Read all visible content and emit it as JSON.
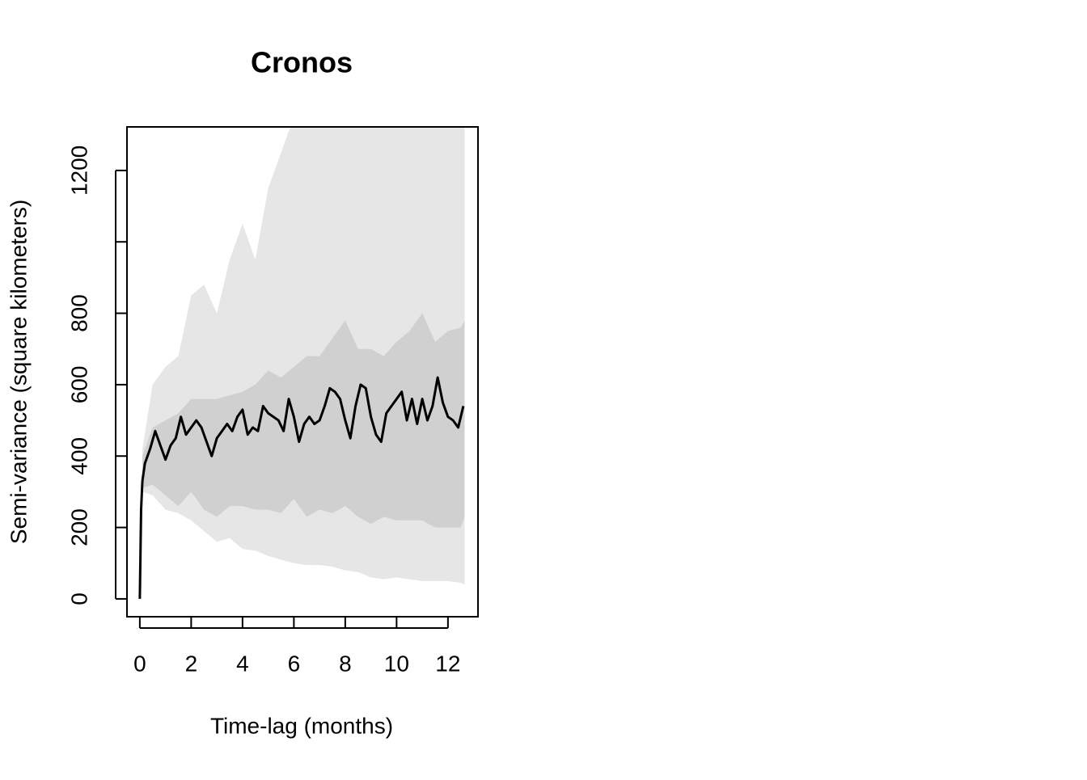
{
  "chart_data": {
    "type": "band-line",
    "title": "Cronos",
    "xlabel": "Time-lag (months)",
    "ylabel": "Semi-variance (square kilometers)",
    "xlim": [
      -0.5,
      13.17
    ],
    "ylim": [
      -50,
      1322
    ],
    "xticks": [
      0,
      2,
      4,
      6,
      8,
      10,
      12
    ],
    "yticks": [
      0,
      200,
      400,
      600,
      800,
      {
        "value": 1000,
        "label": null
      },
      1200
    ],
    "bands": [
      {
        "color": "#e6e6e6",
        "x": [
          0.1,
          0.5,
          1,
          1.5,
          2,
          2.5,
          3,
          3.5,
          4,
          4.5,
          5,
          5.5,
          6,
          6.5,
          7,
          7.5,
          8,
          8.5,
          9,
          9.5,
          10,
          10.5,
          11,
          11.5,
          12,
          12.5,
          12.65
        ],
        "lower": [
          300,
          290,
          250,
          240,
          220,
          190,
          160,
          170,
          140,
          135,
          120,
          110,
          100,
          95,
          95,
          90,
          80,
          75,
          60,
          55,
          60,
          55,
          50,
          50,
          50,
          45,
          40
        ],
        "upper": [
          420,
          600,
          650,
          680,
          850,
          880,
          800,
          950,
          1050,
          950,
          1150,
          1250,
          1350,
          1400,
          1400,
          1400,
          1400,
          1400,
          1400,
          1400,
          1400,
          1400,
          1400,
          1400,
          1400,
          1400,
          1400
        ]
      },
      {
        "color": "#d0d0d0",
        "x": [
          0.1,
          0.5,
          1,
          1.5,
          2,
          2.5,
          3,
          3.5,
          4,
          4.5,
          5,
          5.5,
          6,
          6.5,
          7,
          7.5,
          8,
          8.5,
          9,
          9.5,
          10,
          10.5,
          11,
          11.5,
          12,
          12.5,
          12.65
        ],
        "lower": [
          310,
          320,
          290,
          260,
          300,
          250,
          230,
          260,
          260,
          250,
          250,
          240,
          280,
          230,
          250,
          240,
          260,
          230,
          210,
          230,
          220,
          220,
          220,
          200,
          200,
          200,
          230
        ],
        "upper": [
          400,
          480,
          500,
          520,
          560,
          560,
          560,
          570,
          580,
          600,
          640,
          620,
          650,
          680,
          680,
          730,
          780,
          700,
          700,
          680,
          720,
          750,
          800,
          720,
          750,
          760,
          780
        ]
      }
    ],
    "line": {
      "color": "#000000",
      "x": [
        0,
        0.05,
        0.1,
        0.2,
        0.4,
        0.6,
        0.8,
        1.0,
        1.2,
        1.4,
        1.6,
        1.8,
        2.0,
        2.2,
        2.4,
        2.6,
        2.8,
        3.0,
        3.2,
        3.4,
        3.6,
        3.8,
        4.0,
        4.2,
        4.4,
        4.6,
        4.8,
        5.0,
        5.2,
        5.4,
        5.6,
        5.8,
        6.0,
        6.2,
        6.4,
        6.6,
        6.8,
        7.0,
        7.2,
        7.4,
        7.6,
        7.8,
        8.0,
        8.2,
        8.4,
        8.6,
        8.8,
        9.0,
        9.2,
        9.4,
        9.6,
        9.8,
        10.0,
        10.2,
        10.4,
        10.6,
        10.8,
        11.0,
        11.2,
        11.4,
        11.6,
        11.8,
        12.0,
        12.2,
        12.4,
        12.6
      ],
      "values": [
        0,
        250,
        330,
        380,
        420,
        470,
        430,
        390,
        430,
        450,
        510,
        460,
        480,
        500,
        480,
        440,
        400,
        450,
        470,
        490,
        470,
        510,
        530,
        460,
        480,
        470,
        540,
        520,
        510,
        500,
        470,
        560,
        510,
        440,
        490,
        510,
        490,
        500,
        540,
        590,
        580,
        560,
        500,
        450,
        540,
        600,
        590,
        510,
        460,
        440,
        520,
        540,
        560,
        580,
        500,
        560,
        490,
        560,
        500,
        540,
        620,
        550,
        510,
        500,
        480,
        540
      ]
    }
  }
}
